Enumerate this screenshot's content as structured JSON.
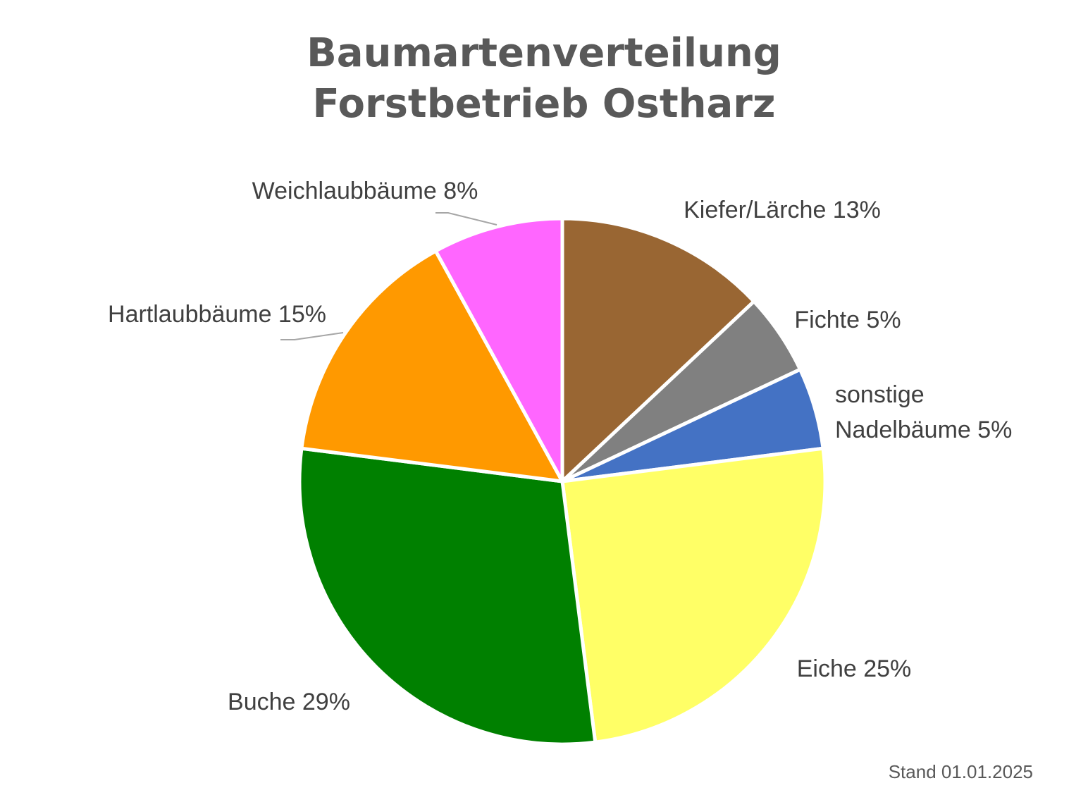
{
  "chart_data": {
    "type": "pie",
    "title": [
      "Baumartenverteilung",
      "Forstbetrieb Ostharz"
    ],
    "start_angle_deg": 0,
    "direction": "clockwise",
    "slices": [
      {
        "label": "Kiefer/Lärche 13%",
        "value": 13,
        "color": "#996633"
      },
      {
        "label": "Fichte 5%",
        "value": 5,
        "color": "#808080"
      },
      {
        "label": "sonstige Nadelbäume 5%",
        "label_lines": [
          "sonstige",
          "Nadelbäume 5%"
        ],
        "value": 5,
        "color": "#4472C4"
      },
      {
        "label": "Eiche 25%",
        "value": 25,
        "color": "#FFFF66"
      },
      {
        "label": "Buche 29%",
        "value": 29,
        "color": "#008000"
      },
      {
        "label": "Hartlaubbäume 15%",
        "value": 15,
        "color": "#FF9900"
      },
      {
        "label": "Weichlaubbäume 8%",
        "value": 8,
        "color": "#FF66FF"
      }
    ],
    "footnote": "Stand 01.01.2025"
  }
}
